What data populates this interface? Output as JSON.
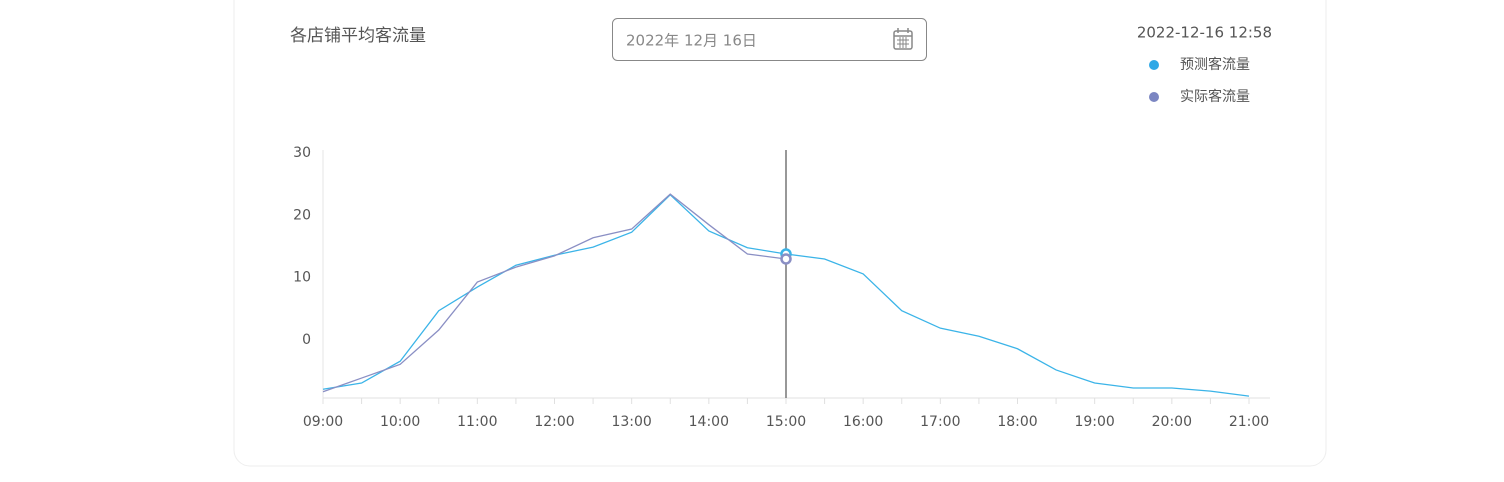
{
  "chart_data": {
    "type": "line",
    "title": "各店铺平均客流量",
    "date_picker": "2022年 12月 16日",
    "timestamp": "2022-12-16  12:58",
    "categories": [
      "09:00",
      null,
      "10:00",
      null,
      "11:00",
      null,
      "12:00",
      null,
      "13:00",
      null,
      "14:00",
      null,
      "15:00",
      null,
      "16:00",
      null,
      "17:00",
      null,
      "18:00",
      null,
      "19:00",
      null,
      "20:00",
      null,
      "21:00"
    ],
    "series": [
      {
        "name": "预测客流量",
        "color": "#3bb4e8",
        "legend_color": "#2fa8e6",
        "values": [
          -7.9,
          -6.9,
          -3.4,
          4.7,
          8.5,
          12.0,
          13.6,
          14.9,
          17.3,
          23.3,
          17.5,
          14.8,
          13.8,
          13.0,
          10.6,
          4.7,
          1.9,
          0.6,
          -1.4,
          -4.8,
          -6.9,
          -7.7,
          -7.7,
          -8.2,
          -9.0
        ]
      },
      {
        "name": "实际客流量",
        "color": "#8a8fc4",
        "legend_color": "#7b86c2",
        "values": [
          -8.3,
          -6.1,
          -3.9,
          1.6,
          9.3,
          11.7,
          13.5,
          16.4,
          17.8,
          23.4,
          18.5,
          13.8,
          13.0,
          null,
          null,
          null,
          null,
          null,
          null,
          null,
          null,
          null,
          null,
          null,
          null
        ]
      }
    ],
    "cursor_index": 12,
    "ylim": [
      -9.3,
      30
    ],
    "yticks": [
      0,
      10,
      20,
      30
    ]
  }
}
